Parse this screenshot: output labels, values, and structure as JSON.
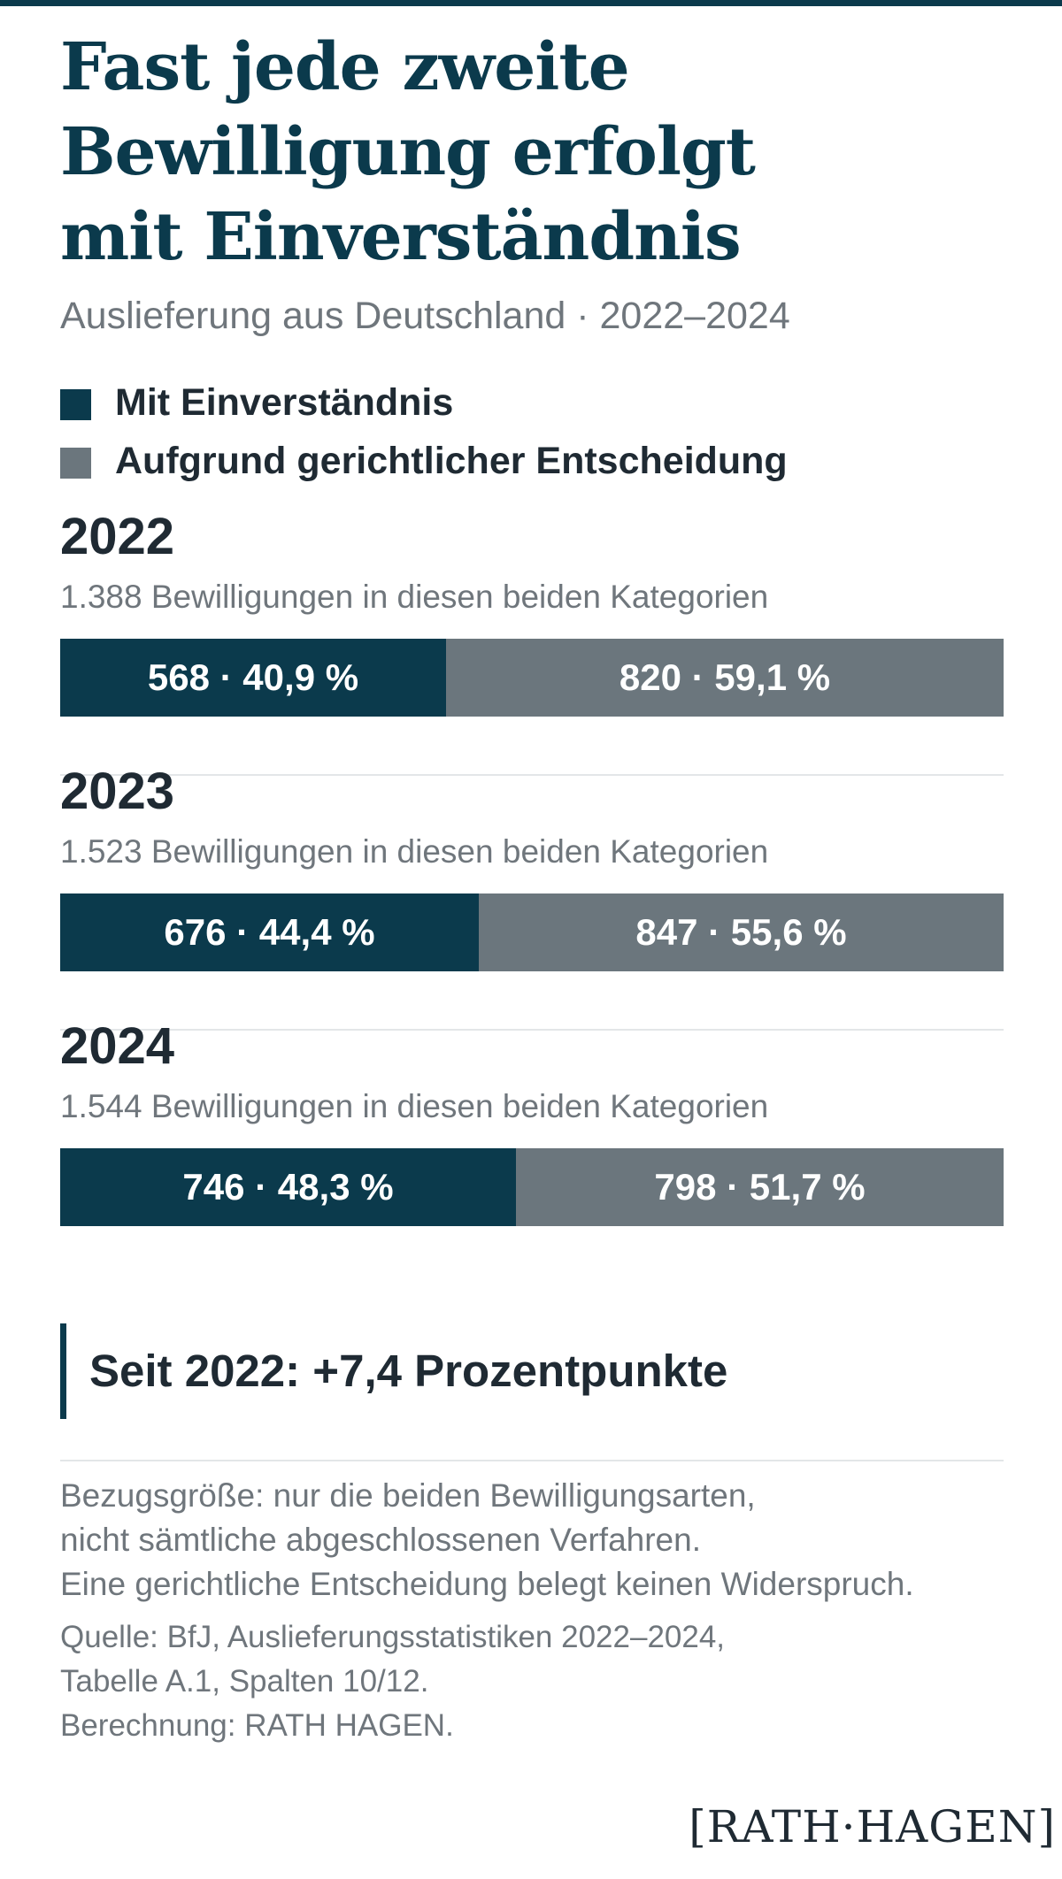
{
  "title_lines": [
    "Fast jede zweite",
    "Bewilligung erfolgt",
    "mit Einverständnis"
  ],
  "subtitle": "Auslieferung aus Deutschland · 2022–2024",
  "legend": [
    {
      "label": "Mit Einverständnis",
      "color": "#0b3a4c"
    },
    {
      "label": "Aufgrund gerichtlicher Entscheidung",
      "color": "#6b767d"
    }
  ],
  "chart_data": {
    "type": "bar",
    "orientation": "horizontal-stacked-100",
    "categories": [
      "2022",
      "2023",
      "2024"
    ],
    "series": [
      {
        "name": "Mit Einverständnis",
        "values": [
          568,
          676,
          746
        ],
        "percent": [
          40.9,
          44.4,
          48.3
        ],
        "color": "#0b3a4c"
      },
      {
        "name": "Aufgrund gerichtlicher Entscheidung",
        "values": [
          820,
          847,
          798
        ],
        "percent": [
          59.1,
          55.6,
          51.7
        ],
        "color": "#6b767d"
      }
    ],
    "years": [
      {
        "year": "2022",
        "count_label": "1.388 Bewilligungen in diesen beiden Kategorien",
        "consent_label": "568 · 40,9 %",
        "court_label": "820 · 59,1 %"
      },
      {
        "year": "2023",
        "count_label": "1.523 Bewilligungen in diesen beiden Kategorien",
        "consent_label": "676 · 44,4 %",
        "court_label": "847 · 55,6 %"
      },
      {
        "year": "2024",
        "count_label": "1.544 Bewilligungen in diesen beiden Kategorien",
        "consent_label": "746 · 48,3 %",
        "court_label": "798 · 51,7 %"
      }
    ]
  },
  "callout": "Seit 2022: +7,4 Prozentpunkte",
  "note_lines": [
    "Bezugsgröße: nur die beiden Bewilligungsarten,",
    "nicht sämtliche abgeschlossenen Verfahren.",
    "Eine gerichtliche Entscheidung belegt keinen Widerspruch."
  ],
  "source_lines": [
    "Quelle: BfJ, Auslieferungsstatistiken 2022–2024,",
    "Tabelle A.1, Spalten 10/12.",
    "Berechnung: RATH HAGEN."
  ],
  "logo": "[RATH·HAGEN]"
}
